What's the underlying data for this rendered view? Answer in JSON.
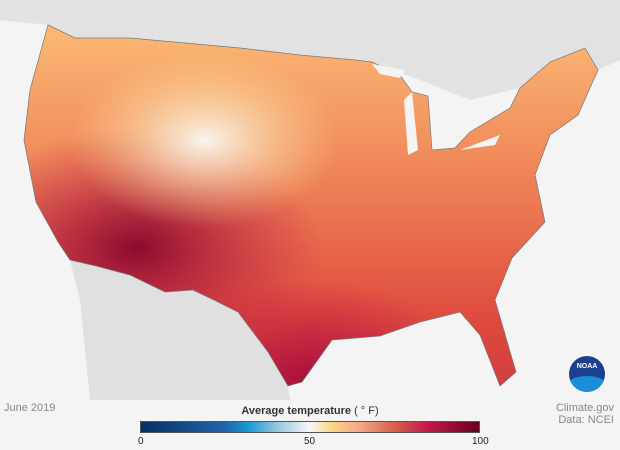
{
  "map": {
    "date": "June 2019",
    "credit": "Climate.gov",
    "source": "Data: NCEI",
    "logo": "NOAA",
    "legend": {
      "title": "Average temperature",
      "unit": "( ° F)",
      "min": "0",
      "mid": "50",
      "max": "100",
      "colors": [
        "#053061",
        "#1a9ad8",
        "#f7f7f7",
        "#fdd88a",
        "#d6604d",
        "#c2184b",
        "#67001f"
      ]
    }
  }
}
